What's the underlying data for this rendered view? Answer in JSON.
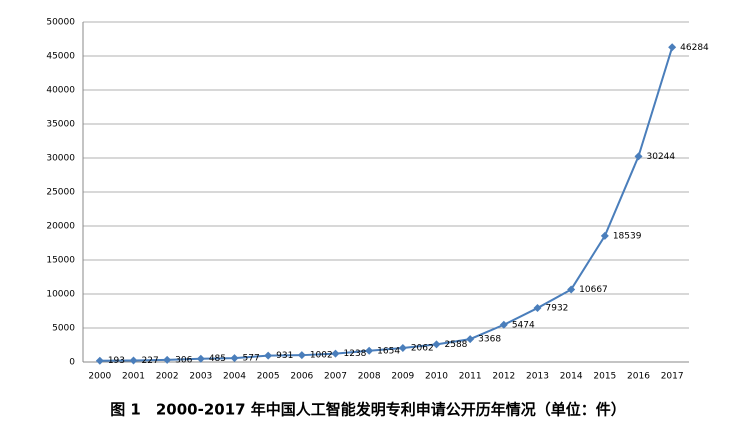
{
  "chart_data": {
    "type": "line",
    "title": "图 1　2000-2017 年中国人工智能发明专利申请公开历年情况（单位：件）",
    "categories": [
      "2000",
      "2001",
      "2002",
      "2003",
      "2004",
      "2005",
      "2006",
      "2007",
      "2008",
      "2009",
      "2010",
      "2011",
      "2012",
      "2013",
      "2014",
      "2015",
      "2016",
      "2017"
    ],
    "series": [
      {
        "name": "发明专利申请公开",
        "color": "#4a7ebb",
        "values": [
          193,
          227,
          306,
          485,
          577,
          931,
          1002,
          1238,
          1654,
          2062,
          2588,
          3368,
          5474,
          7932,
          10667,
          18539,
          30244,
          46284
        ]
      }
    ],
    "ylim": [
      0,
      50000
    ],
    "yticks": [
      0,
      5000,
      10000,
      15000,
      20000,
      25000,
      30000,
      35000,
      40000,
      45000,
      50000
    ],
    "grid": true
  }
}
